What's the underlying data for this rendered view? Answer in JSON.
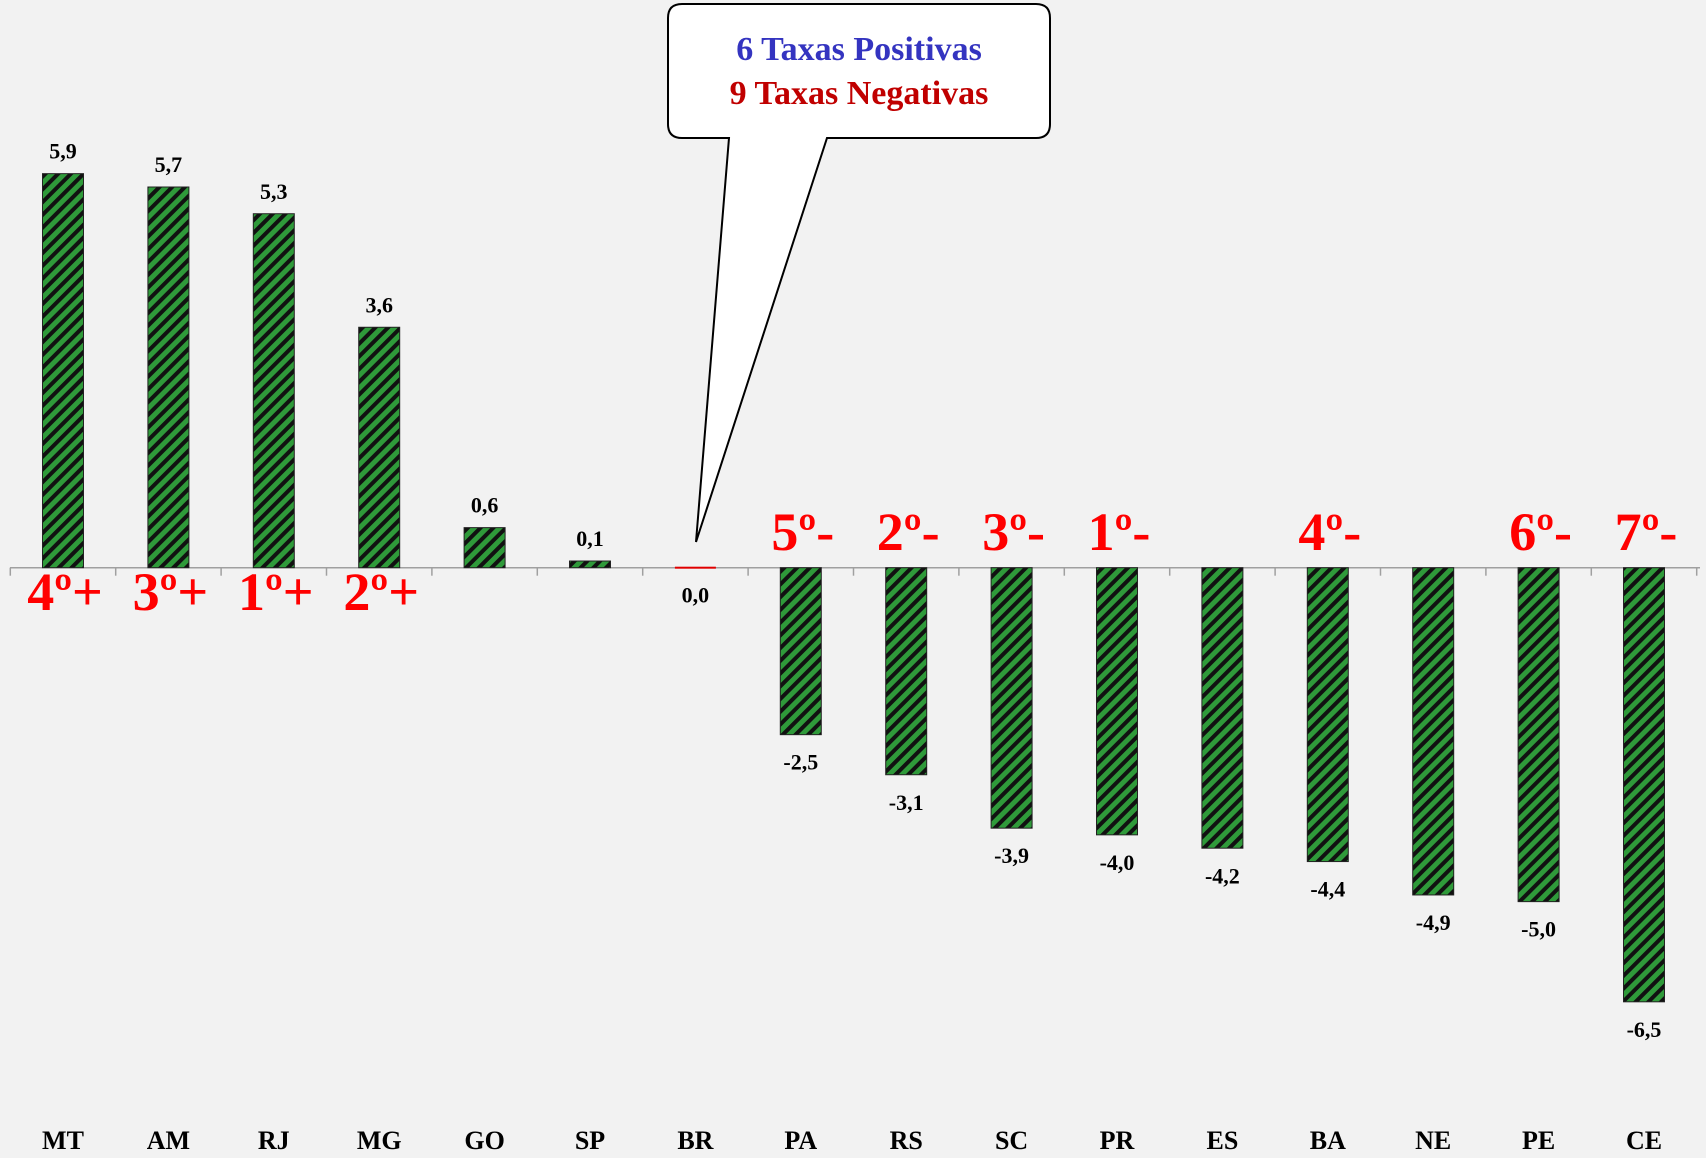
{
  "chart_data": {
    "type": "bar",
    "categories": [
      "MT",
      "AM",
      "RJ",
      "MG",
      "GO",
      "SP",
      "BR",
      "PA",
      "RS",
      "SC",
      "PR",
      "ES",
      "BA",
      "NE",
      "PE",
      "CE"
    ],
    "values": [
      5.9,
      5.7,
      5.3,
      3.6,
      0.6,
      0.1,
      0.0,
      -2.5,
      -3.1,
      -3.9,
      -4.0,
      -4.2,
      -4.4,
      -4.9,
      -5.0,
      -6.5
    ],
    "value_labels": [
      "5,9",
      "5,7",
      "5,3",
      "3,6",
      "0,6",
      "0,1",
      "0,0",
      "-2,5",
      "-3,1",
      "-3,9",
      "-4,0",
      "-4,2",
      "-4,4",
      "-4,9",
      "-5,0",
      "-6,5"
    ],
    "color": "#2f9a3a",
    "hatch_color": "#111111",
    "zero_color": "#e00000",
    "ylim": [
      -8,
      8.5
    ],
    "annotations": [
      {
        "text": "4º+",
        "category": "MT"
      },
      {
        "text": "3º+",
        "category": "AM"
      },
      {
        "text": "1º+",
        "category": "RJ"
      },
      {
        "text": "2º+",
        "category": "MG"
      },
      {
        "text": "5º-",
        "category": "PA"
      },
      {
        "text": "2º-",
        "category": "RS"
      },
      {
        "text": "3º-",
        "category": "SC"
      },
      {
        "text": "1º-",
        "category": "PR"
      },
      {
        "text": "4º-",
        "category": "BA"
      },
      {
        "text": "6º-",
        "category": "PE"
      },
      {
        "text": "7º-",
        "category": "CE"
      }
    ],
    "callout": [
      "6 Taxas Positivas",
      "9 Taxas Negativas"
    ]
  }
}
